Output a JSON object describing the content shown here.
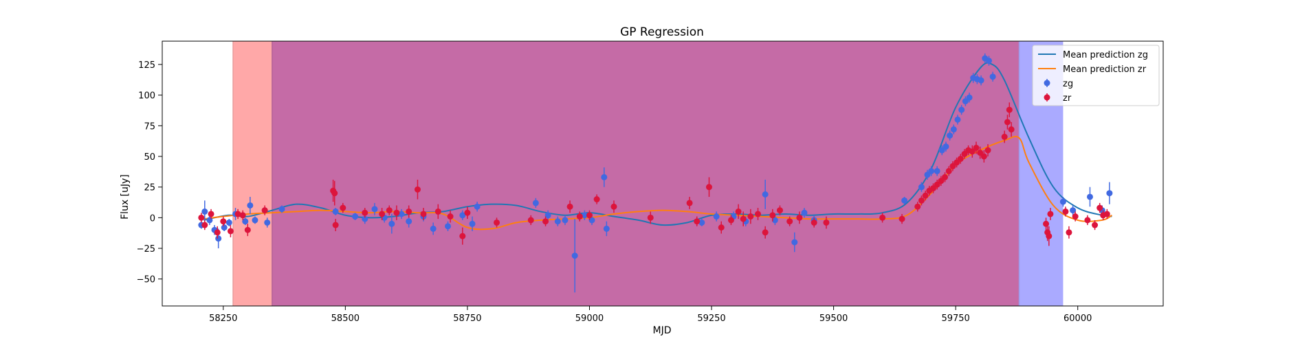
{
  "chart_data": {
    "type": "scatter",
    "title": "GP Regression",
    "xlabel": "MJD",
    "ylabel": "Flux [uJy]",
    "xlim": [
      58125,
      60175
    ],
    "ylim": [
      -72,
      144
    ],
    "xticks": [
      58250,
      58500,
      58750,
      59000,
      59250,
      59500,
      59750,
      60000
    ],
    "yticks": [
      -50,
      -25,
      0,
      25,
      50,
      75,
      100,
      125
    ],
    "grid": false,
    "legend_position": "top-right",
    "legend": [
      "Mean prediction zg",
      "Mean prediction zr",
      "zg",
      "zr"
    ],
    "shaded_regions": [
      {
        "x0": 58270,
        "x1": 58350,
        "color": "#ffa8a8"
      },
      {
        "x0": 58350,
        "x1": 59880,
        "color": "#c56ba6"
      },
      {
        "x0": 59880,
        "x1": 59970,
        "color": "#aaaaff"
      }
    ],
    "series": [
      {
        "name": "Mean prediction zg",
        "kind": "line",
        "color": "#1f77b4",
        "x": [
          58210,
          58260,
          58300,
          58350,
          58400,
          58450,
          58500,
          58550,
          58600,
          58650,
          58700,
          58750,
          58800,
          58850,
          58900,
          58950,
          59000,
          59050,
          59100,
          59150,
          59200,
          59250,
          59300,
          59350,
          59400,
          59450,
          59500,
          59550,
          59600,
          59650,
          59700,
          59750,
          59800,
          59825,
          59850,
          59900,
          59950,
          60000,
          60050,
          60070
        ],
        "y": [
          -2,
          2,
          1,
          6,
          11,
          8,
          2,
          0,
          1,
          4,
          5,
          9,
          11,
          10,
          5,
          2,
          4,
          1,
          -2,
          -6,
          -4,
          2,
          3,
          2,
          3,
          2,
          3,
          3,
          4,
          12,
          40,
          90,
          122,
          125,
          112,
          65,
          25,
          8,
          2,
          1
        ]
      },
      {
        "name": "Mean prediction zr",
        "kind": "line",
        "color": "#ff7f0e",
        "x": [
          58210,
          58250,
          58300,
          58350,
          58400,
          58450,
          58500,
          58550,
          58600,
          58650,
          58700,
          58750,
          58800,
          58850,
          58900,
          58950,
          59000,
          59050,
          59100,
          59150,
          59200,
          59250,
          59300,
          59350,
          59400,
          59450,
          59500,
          59550,
          59600,
          59650,
          59700,
          59750,
          59800,
          59850,
          59880,
          59900,
          59950,
          60000,
          60050,
          60070
        ],
        "y": [
          -1,
          1,
          3,
          4,
          5,
          6,
          5,
          4,
          5,
          4,
          3,
          -8,
          -9,
          -4,
          -2,
          -1,
          0,
          3,
          5,
          6,
          5,
          3,
          2,
          1,
          0,
          -1,
          -1,
          -1,
          -1,
          2,
          20,
          43,
          55,
          63,
          65,
          45,
          10,
          -2,
          -2,
          2
        ]
      },
      {
        "name": "zg",
        "kind": "errorbar",
        "color": "#4169e1",
        "points": [
          {
            "x": 58205,
            "y": -6,
            "err": 3
          },
          {
            "x": 58212,
            "y": 5,
            "err": 9
          },
          {
            "x": 58222,
            "y": -2,
            "err": 4
          },
          {
            "x": 58232,
            "y": -10,
            "err": 4
          },
          {
            "x": 58240,
            "y": -17,
            "err": 8
          },
          {
            "x": 58252,
            "y": -8,
            "err": 3
          },
          {
            "x": 58262,
            "y": -4,
            "err": 3
          },
          {
            "x": 58275,
            "y": 3,
            "err": 5
          },
          {
            "x": 58295,
            "y": -3,
            "err": 3
          },
          {
            "x": 58305,
            "y": 10,
            "err": 7
          },
          {
            "x": 58315,
            "y": -2,
            "err": 3
          },
          {
            "x": 58340,
            "y": -4,
            "err": 4
          },
          {
            "x": 58370,
            "y": 7,
            "err": 3
          },
          {
            "x": 58480,
            "y": 5,
            "err": 3
          },
          {
            "x": 58520,
            "y": 1,
            "err": 3
          },
          {
            "x": 58540,
            "y": -1,
            "err": 4
          },
          {
            "x": 58560,
            "y": 7,
            "err": 5
          },
          {
            "x": 58580,
            "y": 0,
            "err": 4
          },
          {
            "x": 58595,
            "y": -5,
            "err": 8
          },
          {
            "x": 58615,
            "y": 3,
            "err": 4
          },
          {
            "x": 58630,
            "y": -3,
            "err": 5
          },
          {
            "x": 58660,
            "y": 1,
            "err": 4
          },
          {
            "x": 58680,
            "y": -9,
            "err": 5
          },
          {
            "x": 58710,
            "y": -7,
            "err": 4
          },
          {
            "x": 58740,
            "y": 2,
            "err": 4
          },
          {
            "x": 58760,
            "y": -5,
            "err": 6
          },
          {
            "x": 58770,
            "y": 9,
            "err": 4
          },
          {
            "x": 58890,
            "y": 12,
            "err": 4
          },
          {
            "x": 58915,
            "y": 2,
            "err": 4
          },
          {
            "x": 58935,
            "y": -3,
            "err": 4
          },
          {
            "x": 58950,
            "y": -2,
            "err": 4
          },
          {
            "x": 58970,
            "y": -31,
            "err": 30
          },
          {
            "x": 58990,
            "y": 2,
            "err": 4
          },
          {
            "x": 59005,
            "y": -2,
            "err": 4
          },
          {
            "x": 59030,
            "y": 33,
            "err": 8
          },
          {
            "x": 59035,
            "y": -9,
            "err": 6
          },
          {
            "x": 59230,
            "y": -4,
            "err": 3
          },
          {
            "x": 59260,
            "y": 1,
            "err": 4
          },
          {
            "x": 59295,
            "y": 1,
            "err": 4
          },
          {
            "x": 59320,
            "y": -3,
            "err": 4
          },
          {
            "x": 59360,
            "y": 19,
            "err": 12
          },
          {
            "x": 59380,
            "y": -2,
            "err": 4
          },
          {
            "x": 59420,
            "y": -20,
            "err": 8
          },
          {
            "x": 59440,
            "y": 4,
            "err": 4
          },
          {
            "x": 59460,
            "y": -2,
            "err": 4
          },
          {
            "x": 59645,
            "y": 14,
            "err": 3
          },
          {
            "x": 59680,
            "y": 25,
            "err": 4
          },
          {
            "x": 59692,
            "y": 35,
            "err": 4
          },
          {
            "x": 59700,
            "y": 38,
            "err": 4
          },
          {
            "x": 59712,
            "y": 38,
            "err": 4
          },
          {
            "x": 59722,
            "y": 55,
            "err": 4
          },
          {
            "x": 59730,
            "y": 58,
            "err": 4
          },
          {
            "x": 59738,
            "y": 67,
            "err": 4
          },
          {
            "x": 59746,
            "y": 72,
            "err": 4
          },
          {
            "x": 59754,
            "y": 80,
            "err": 4
          },
          {
            "x": 59762,
            "y": 88,
            "err": 4
          },
          {
            "x": 59770,
            "y": 95,
            "err": 4
          },
          {
            "x": 59778,
            "y": 98,
            "err": 4
          },
          {
            "x": 59786,
            "y": 114,
            "err": 4
          },
          {
            "x": 59794,
            "y": 113,
            "err": 4
          },
          {
            "x": 59802,
            "y": 112,
            "err": 4
          },
          {
            "x": 59810,
            "y": 130,
            "err": 4
          },
          {
            "x": 59818,
            "y": 128,
            "err": 4
          },
          {
            "x": 59826,
            "y": 115,
            "err": 4
          },
          {
            "x": 59970,
            "y": 13,
            "err": 4
          },
          {
            "x": 59990,
            "y": 6,
            "err": 4
          },
          {
            "x": 60025,
            "y": 17,
            "err": 8
          },
          {
            "x": 60050,
            "y": 6,
            "err": 4
          },
          {
            "x": 60065,
            "y": 20,
            "err": 9
          }
        ]
      },
      {
        "name": "zr",
        "kind": "errorbar",
        "color": "#dc143c",
        "points": [
          {
            "x": 58205,
            "y": 0,
            "err": 4
          },
          {
            "x": 58212,
            "y": -6,
            "err": 4
          },
          {
            "x": 58225,
            "y": 3,
            "err": 4
          },
          {
            "x": 58238,
            "y": -12,
            "err": 5
          },
          {
            "x": 58250,
            "y": -3,
            "err": 4
          },
          {
            "x": 58265,
            "y": -11,
            "err": 5
          },
          {
            "x": 58280,
            "y": 3,
            "err": 4
          },
          {
            "x": 58290,
            "y": 2,
            "err": 4
          },
          {
            "x": 58300,
            "y": -10,
            "err": 5
          },
          {
            "x": 58335,
            "y": 6,
            "err": 4
          },
          {
            "x": 58475,
            "y": 22,
            "err": 9
          },
          {
            "x": 58478,
            "y": 20,
            "err": 10
          },
          {
            "x": 58480,
            "y": -6,
            "err": 5
          },
          {
            "x": 58495,
            "y": 8,
            "err": 4
          },
          {
            "x": 58540,
            "y": 4,
            "err": 4
          },
          {
            "x": 58575,
            "y": 3,
            "err": 5
          },
          {
            "x": 58590,
            "y": 6,
            "err": 4
          },
          {
            "x": 58605,
            "y": 4,
            "err": 6
          },
          {
            "x": 58630,
            "y": 5,
            "err": 5
          },
          {
            "x": 58648,
            "y": 23,
            "err": 8
          },
          {
            "x": 58660,
            "y": 3,
            "err": 5
          },
          {
            "x": 58690,
            "y": 5,
            "err": 6
          },
          {
            "x": 58715,
            "y": 1,
            "err": 5
          },
          {
            "x": 58740,
            "y": -15,
            "err": 7
          },
          {
            "x": 58750,
            "y": 4,
            "err": 5
          },
          {
            "x": 58810,
            "y": -4,
            "err": 4
          },
          {
            "x": 58880,
            "y": -2,
            "err": 4
          },
          {
            "x": 58910,
            "y": -3,
            "err": 4
          },
          {
            "x": 58960,
            "y": 9,
            "err": 5
          },
          {
            "x": 58980,
            "y": 1,
            "err": 4
          },
          {
            "x": 59000,
            "y": 2,
            "err": 4
          },
          {
            "x": 59015,
            "y": 15,
            "err": 4
          },
          {
            "x": 59050,
            "y": 9,
            "err": 5
          },
          {
            "x": 59125,
            "y": 0,
            "err": 5
          },
          {
            "x": 59205,
            "y": 12,
            "err": 5
          },
          {
            "x": 59220,
            "y": -3,
            "err": 4
          },
          {
            "x": 59245,
            "y": 25,
            "err": 8
          },
          {
            "x": 59270,
            "y": -8,
            "err": 5
          },
          {
            "x": 59290,
            "y": -2,
            "err": 4
          },
          {
            "x": 59305,
            "y": 5,
            "err": 6
          },
          {
            "x": 59315,
            "y": -1,
            "err": 6
          },
          {
            "x": 59330,
            "y": 1,
            "err": 6
          },
          {
            "x": 59345,
            "y": 3,
            "err": 5
          },
          {
            "x": 59360,
            "y": -12,
            "err": 5
          },
          {
            "x": 59375,
            "y": 2,
            "err": 5
          },
          {
            "x": 59390,
            "y": 6,
            "err": 4
          },
          {
            "x": 59410,
            "y": -3,
            "err": 4
          },
          {
            "x": 59430,
            "y": 0,
            "err": 5
          },
          {
            "x": 59460,
            "y": -4,
            "err": 4
          },
          {
            "x": 59485,
            "y": -4,
            "err": 5
          },
          {
            "x": 59600,
            "y": 0,
            "err": 4
          },
          {
            "x": 59640,
            "y": -1,
            "err": 4
          },
          {
            "x": 59672,
            "y": 9,
            "err": 4
          },
          {
            "x": 59680,
            "y": 14,
            "err": 4
          },
          {
            "x": 59688,
            "y": 18,
            "err": 4
          },
          {
            "x": 59696,
            "y": 22,
            "err": 4
          },
          {
            "x": 59704,
            "y": 24,
            "err": 4
          },
          {
            "x": 59712,
            "y": 27,
            "err": 4
          },
          {
            "x": 59720,
            "y": 30,
            "err": 4
          },
          {
            "x": 59728,
            "y": 33,
            "err": 4
          },
          {
            "x": 59736,
            "y": 38,
            "err": 4
          },
          {
            "x": 59744,
            "y": 42,
            "err": 4
          },
          {
            "x": 59752,
            "y": 45,
            "err": 4
          },
          {
            "x": 59760,
            "y": 48,
            "err": 4
          },
          {
            "x": 59768,
            "y": 52,
            "err": 4
          },
          {
            "x": 59776,
            "y": 55,
            "err": 4
          },
          {
            "x": 59784,
            "y": 54,
            "err": 5
          },
          {
            "x": 59792,
            "y": 57,
            "err": 5
          },
          {
            "x": 59800,
            "y": 53,
            "err": 5
          },
          {
            "x": 59808,
            "y": 50,
            "err": 5
          },
          {
            "x": 59816,
            "y": 55,
            "err": 5
          },
          {
            "x": 59850,
            "y": 66,
            "err": 5
          },
          {
            "x": 59856,
            "y": 78,
            "err": 6
          },
          {
            "x": 59860,
            "y": 88,
            "err": 6
          },
          {
            "x": 59864,
            "y": 72,
            "err": 6
          },
          {
            "x": 59935,
            "y": -5,
            "err": 5
          },
          {
            "x": 59938,
            "y": -12,
            "err": 7
          },
          {
            "x": 59941,
            "y": -15,
            "err": 8
          },
          {
            "x": 59944,
            "y": 3,
            "err": 5
          },
          {
            "x": 59975,
            "y": 5,
            "err": 4
          },
          {
            "x": 59982,
            "y": -12,
            "err": 5
          },
          {
            "x": 59995,
            "y": 1,
            "err": 4
          },
          {
            "x": 60020,
            "y": -2,
            "err": 4
          },
          {
            "x": 60035,
            "y": -6,
            "err": 4
          },
          {
            "x": 60045,
            "y": 8,
            "err": 4
          },
          {
            "x": 60052,
            "y": 2,
            "err": 4
          },
          {
            "x": 60060,
            "y": 3,
            "err": 4
          }
        ]
      }
    ]
  }
}
